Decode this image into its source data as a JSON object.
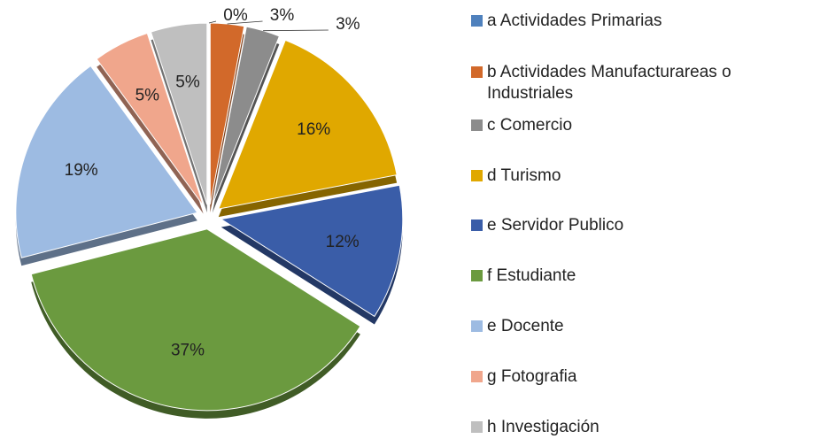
{
  "chart_data": {
    "type": "pie",
    "categories": [
      "a Actividades Primarias",
      "b Actividades Manufacturareas o Industriales",
      "c Comercio",
      "d Turismo",
      "e Servidor Publico",
      "f Estudiante",
      "e Docente",
      "g Fotografia",
      "h Investigación"
    ],
    "values": [
      0,
      3,
      3,
      16,
      12,
      37,
      19,
      5,
      5
    ],
    "value_labels": [
      "0%",
      "3%",
      "3%",
      "16%",
      "12%",
      "37%",
      "19%",
      "5%",
      "5%"
    ],
    "colors": [
      "#4f81bd",
      "#d2692a",
      "#8c8c8c",
      "#e0a800",
      "#3a5da8",
      "#6b9a3f",
      "#9dbbe2",
      "#f0a68c",
      "#bfbfbf"
    ],
    "legend": "right"
  }
}
